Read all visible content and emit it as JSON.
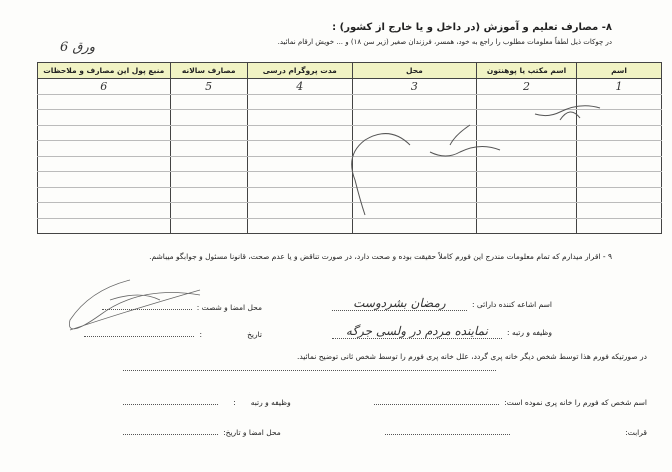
{
  "section8": {
    "title": "۸- مصارف تعلیم و آموزش (در داخل و یا خارج از کشور) :",
    "subtitle": "در چوکات ذیل لطفاً معلومات مطلوب را راجع به خود، همسر، فرزندان صغیر (زیر سن ۱۸) و ... خویش ارقام نمائید.",
    "page_note": "ورق 6",
    "table": {
      "headers": [
        "اسم",
        "اسم مکتب یا پوهنتون",
        "محل",
        "مدت پروگرام درسی",
        "مصارف سالانه",
        "منبع پول این مصارف و ملاحظات"
      ],
      "numbering_row": [
        "1",
        "2",
        "3",
        "4",
        "5",
        "6"
      ],
      "empty_rows": 9
    }
  },
  "section9": {
    "declaration": "۹ - اقرار میدارم که تمام معلومات مندرج این فورم کاملاً حقیقت بوده و صحت دارد، در صورت تناقض و یا عدم صحت، قانونا مسئول و جوابگو میباشم.",
    "name_label": "اسم اشاعه کننده دارائی :",
    "name_value": "رمضان بشردوست",
    "signature_label": "محل امضا و شصت :",
    "position_label": "وظیفه و رتبه :",
    "position_value": "نماینده مردم در ولسی جرگه",
    "date_label": "تاریخ",
    "date_colon": ":"
  },
  "third_party": {
    "note": "در صورتیکه فورم هذا توسط شخص دیگر خانه پری گردد، علل خانه پری فورم را توسط شخص ثانی توضیح نمائید.",
    "filler_name_label": "اسم شخص که فورم را خانه پری نموده است:",
    "position_label": "وظیفه و رتبه",
    "position_colon": ":",
    "relation_label": "قرابت:",
    "sign_date_label": "محل امضا و تاریخ:"
  }
}
